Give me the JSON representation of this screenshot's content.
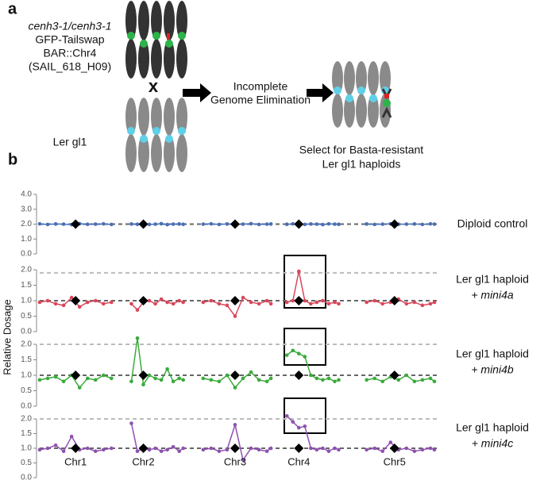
{
  "panel_a": {
    "label": "a",
    "parent1": [
      "cenh3-1/cenh3-1",
      "GFP-Tailswap",
      "BAR::Chr4",
      "(SAIL_618_H09)"
    ],
    "cross": "x",
    "parent2": "Ler gl1",
    "step": [
      "Incomplete",
      "Genome Elimination"
    ],
    "result": [
      "Select for Basta-resistant",
      "Ler gl1 haploids"
    ]
  },
  "panel_b_label": "b",
  "y_axis_label": "Relative Dosage",
  "chart_data": [
    {
      "type": "line",
      "title_lines": [
        "Diploid control"
      ],
      "color": "#4a6fb5",
      "xlim": [
        0,
        100
      ],
      "ylim": [
        0,
        4
      ],
      "yticks": [
        {
          "value": 0,
          "label": "0.0"
        },
        {
          "value": 1,
          "label": "1.0"
        },
        {
          "value": 2,
          "label": "2.0"
        },
        {
          "value": 3,
          "label": "3.0"
        },
        {
          "value": 4,
          "label": "4.0"
        }
      ],
      "ref_lines": [
        2
      ],
      "ref_colors": [
        "#666"
      ],
      "x": [
        0,
        2,
        4,
        6,
        8,
        10,
        12,
        14,
        16,
        18,
        20.5,
        23,
        24.5,
        26,
        27.5,
        29,
        30.5,
        32,
        33.5,
        35,
        36,
        38.5,
        41,
        43,
        45,
        47,
        49,
        51,
        53,
        55,
        57,
        58,
        60,
        62,
        63.5,
        65,
        66.5,
        68,
        69.5,
        71,
        72.5,
        74,
        75,
        78.5,
        82,
        84,
        86,
        88,
        90,
        92,
        94,
        96,
        98,
        99
      ],
      "values": [
        2.02,
        1.98,
        2.01,
        2.0,
        1.97,
        2.03,
        1.99,
        2.0,
        2.02,
        1.98,
        null,
        2.01,
        1.99,
        2.02,
        1.98,
        2.0,
        2.03,
        1.97,
        2.0,
        2.01,
        1.99,
        null,
        2.0,
        2.02,
        1.98,
        2.01,
        1.99,
        2.0,
        2.03,
        1.98,
        2.0,
        2.01,
        null,
        1.99,
        2.02,
        2.0,
        1.98,
        2.01,
        2.0,
        1.97,
        2.02,
        2.0,
        1.99,
        null,
        2.01,
        1.98,
        2.0,
        2.02,
        1.99,
        2.0,
        2.01,
        1.98,
        2.02,
        2.0
      ],
      "markers": {
        "x": [
          9,
          26,
          49,
          65,
          89
        ],
        "values": [
          2,
          2,
          2,
          2,
          2
        ]
      }
    },
    {
      "type": "line",
      "title_lines": [
        "Ler gl1 haploid",
        "+ mini4a"
      ],
      "color": "#d9475a",
      "xlim": [
        0,
        100
      ],
      "ylim": [
        0,
        2
      ],
      "yticks": [
        {
          "value": 0,
          "label": "0.0"
        },
        0.5,
        {
          "value": 1,
          "label": "1.0"
        },
        1.5,
        {
          "value": 2,
          "label": "2.0"
        }
      ],
      "ref_lines": [
        1,
        1.9
      ],
      "ref_colors": [
        "#666",
        "#bbb"
      ],
      "x": [
        0,
        2,
        4,
        6,
        8,
        10,
        12,
        14,
        16,
        18,
        20.5,
        23,
        24.5,
        26,
        27.5,
        29,
        30.5,
        32,
        33.5,
        35,
        36,
        38.5,
        41,
        43,
        45,
        47,
        49,
        51,
        53,
        55,
        57,
        58,
        60,
        62,
        63.5,
        65,
        66.5,
        68,
        69.5,
        71,
        72.5,
        74,
        75,
        78.5,
        82,
        84,
        86,
        88,
        90,
        92,
        94,
        96,
        98,
        99
      ],
      "values": [
        0.95,
        1.0,
        0.9,
        0.85,
        1.1,
        0.8,
        0.95,
        1.0,
        0.9,
        0.95,
        null,
        0.9,
        0.7,
        0.95,
        1.0,
        0.9,
        1.05,
        0.95,
        0.9,
        1.0,
        0.95,
        null,
        0.95,
        1.0,
        0.9,
        0.85,
        0.5,
        1.1,
        0.95,
        0.9,
        1.0,
        0.9,
        null,
        0.95,
        1.0,
        1.95,
        1.0,
        0.9,
        0.95,
        1.0,
        0.9,
        0.95,
        0.9,
        null,
        0.95,
        1.0,
        0.9,
        0.95,
        1.05,
        0.9,
        0.95,
        0.85,
        0.9,
        0.95
      ],
      "markers": {
        "x": [
          9,
          26,
          49,
          65,
          89
        ],
        "values": [
          1,
          1,
          1,
          1,
          1
        ]
      }
    },
    {
      "type": "line",
      "title_lines": [
        "Ler gl1 haploid",
        "+ mini4b"
      ],
      "color": "#3aaa3a",
      "xlim": [
        0,
        100
      ],
      "ylim": [
        0,
        2
      ],
      "yticks": [
        {
          "value": 0,
          "label": "0.0"
        },
        0.5,
        {
          "value": 1,
          "label": "1.0"
        },
        1.5,
        {
          "value": 2,
          "label": "2.0"
        }
      ],
      "ref_lines": [
        1,
        2
      ],
      "ref_colors": [
        "#666",
        "#bbb"
      ],
      "x": [
        0,
        2,
        4,
        6,
        8,
        10,
        12,
        14,
        16,
        18,
        20.5,
        23,
        24.5,
        26,
        27.5,
        29,
        30.5,
        32,
        33.5,
        35,
        36,
        38.5,
        41,
        43,
        45,
        47,
        49,
        51,
        53,
        55,
        57,
        58,
        60,
        62,
        63.5,
        65,
        66.5,
        68,
        69.5,
        71,
        72.5,
        74,
        75,
        78.5,
        82,
        84,
        86,
        88,
        90,
        92,
        94,
        96,
        98,
        99
      ],
      "values": [
        0.85,
        0.9,
        0.95,
        0.8,
        1.0,
        0.6,
        0.9,
        0.85,
        1.0,
        0.9,
        null,
        0.8,
        2.2,
        0.7,
        1.0,
        0.9,
        0.85,
        1.2,
        0.8,
        0.9,
        0.85,
        null,
        0.9,
        0.85,
        0.8,
        1.0,
        0.6,
        0.9,
        1.1,
        0.85,
        0.8,
        0.9,
        null,
        1.65,
        1.8,
        1.7,
        1.6,
        1.0,
        0.9,
        0.85,
        0.9,
        0.8,
        0.85,
        null,
        0.85,
        0.9,
        0.8,
        0.95,
        0.85,
        1.0,
        0.8,
        0.85,
        0.9,
        0.8
      ],
      "markers": {
        "x": [
          9,
          26,
          49,
          65,
          89
        ],
        "values": [
          1,
          1,
          1,
          1,
          1
        ]
      }
    },
    {
      "type": "line",
      "title_lines": [
        "Ler gl1 haploid",
        "+ mini4c"
      ],
      "color": "#8e52b0",
      "xlim": [
        0,
        100
      ],
      "ylim": [
        0,
        2
      ],
      "yticks": [
        {
          "value": 0,
          "label": "0.0"
        },
        0.5,
        {
          "value": 1,
          "label": "1.0"
        },
        1.5,
        {
          "value": 2,
          "label": "2.0"
        }
      ],
      "ref_lines": [
        1,
        2
      ],
      "ref_colors": [
        "#666",
        "#bbb"
      ],
      "x": [
        0,
        2,
        4,
        6,
        8,
        10,
        12,
        14,
        16,
        18,
        20.5,
        23,
        24.5,
        26,
        27.5,
        29,
        30.5,
        32,
        33.5,
        35,
        36,
        38.5,
        41,
        43,
        45,
        47,
        49,
        51,
        53,
        55,
        57,
        58,
        60,
        62,
        63.5,
        65,
        66.5,
        68,
        69.5,
        71,
        72.5,
        74,
        75,
        78.5,
        82,
        84,
        86,
        88,
        90,
        92,
        94,
        96,
        98,
        99
      ],
      "values": [
        0.95,
        1.0,
        1.1,
        0.9,
        1.4,
        0.95,
        1.0,
        0.9,
        0.95,
        1.0,
        null,
        1.85,
        0.9,
        1.0,
        0.95,
        1.0,
        0.9,
        0.95,
        1.05,
        0.9,
        1.0,
        null,
        0.95,
        1.0,
        0.9,
        0.95,
        1.8,
        0.6,
        1.0,
        0.95,
        0.9,
        1.0,
        null,
        2.1,
        1.9,
        1.7,
        1.75,
        1.0,
        0.95,
        1.0,
        0.9,
        1.0,
        0.95,
        null,
        0.95,
        1.0,
        0.9,
        1.2,
        0.95,
        1.0,
        0.9,
        0.95,
        1.0,
        0.95
      ],
      "markers": {
        "x": [
          9,
          26,
          49,
          65,
          89
        ],
        "values": [
          1,
          1,
          1,
          1,
          1
        ]
      },
      "xticks": [
        {
          "value": 9,
          "label": "Chr1"
        },
        {
          "value": 26,
          "label": "Chr2"
        },
        {
          "value": 49,
          "label": "Chr3"
        },
        {
          "value": 65,
          "label": "Chr4"
        },
        {
          "value": 89,
          "label": "Chr5"
        }
      ]
    }
  ]
}
